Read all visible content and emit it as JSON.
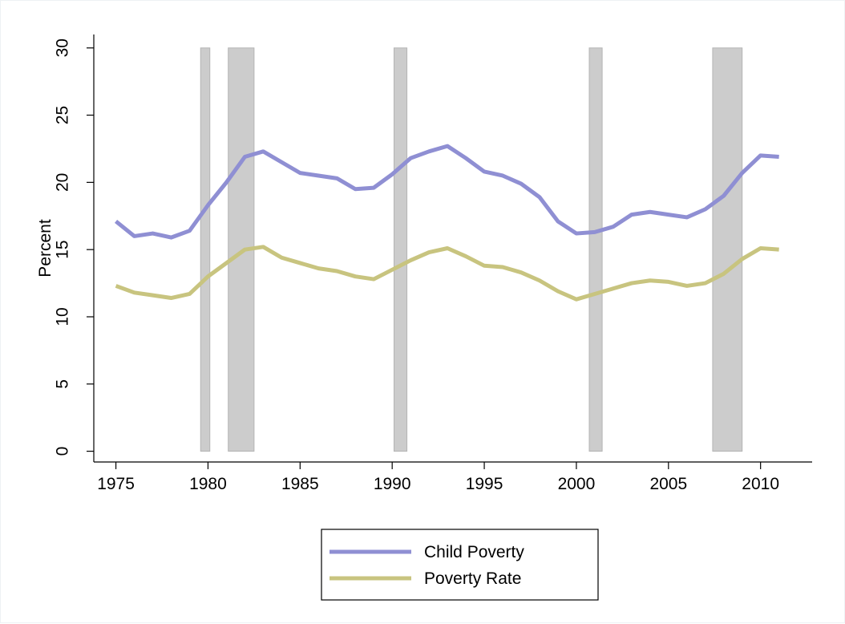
{
  "chart_data": {
    "type": "line",
    "title": "",
    "xlabel": "",
    "ylabel": "Percent",
    "xlim": [
      1973.8,
      2012.8
    ],
    "ylim": [
      -0.8,
      31
    ],
    "x_ticks": [
      1975,
      1980,
      1985,
      1990,
      1995,
      2000,
      2005,
      2010
    ],
    "y_ticks": [
      0,
      5,
      10,
      15,
      20,
      25,
      30
    ],
    "grid": false,
    "legend_position": "bottom-center",
    "recessions": [
      [
        1979.6,
        1980.1
      ],
      [
        1981.1,
        1982.5
      ],
      [
        1990.1,
        1990.8
      ],
      [
        2000.7,
        2001.4
      ],
      [
        2007.4,
        2009.0
      ]
    ],
    "recession_color": "#cccccc",
    "recession_edge": "#b4b4b4",
    "x": [
      1975,
      1976,
      1977,
      1978,
      1979,
      1980,
      1981,
      1982,
      1983,
      1984,
      1985,
      1986,
      1987,
      1988,
      1989,
      1990,
      1991,
      1992,
      1993,
      1994,
      1995,
      1996,
      1997,
      1998,
      1999,
      2000,
      2001,
      2002,
      2003,
      2004,
      2005,
      2006,
      2007,
      2008,
      2009,
      2010,
      2011
    ],
    "series": [
      {
        "name": "Child Poverty",
        "color": "#8f8fd3",
        "values": [
          17.1,
          16.0,
          16.2,
          15.9,
          16.4,
          18.3,
          20.0,
          21.9,
          22.3,
          21.5,
          20.7,
          20.5,
          20.3,
          19.5,
          19.6,
          20.6,
          21.8,
          22.3,
          22.7,
          21.8,
          20.8,
          20.5,
          19.9,
          18.9,
          17.1,
          16.2,
          16.3,
          16.7,
          17.6,
          17.8,
          17.6,
          17.4,
          18.0,
          19.0,
          20.7,
          22.0,
          21.9
        ]
      },
      {
        "name": "Poverty Rate",
        "color": "#c8c47f",
        "values": [
          12.3,
          11.8,
          11.6,
          11.4,
          11.7,
          13.0,
          14.0,
          15.0,
          15.2,
          14.4,
          14.0,
          13.6,
          13.4,
          13.0,
          12.8,
          13.5,
          14.2,
          14.8,
          15.1,
          14.5,
          13.8,
          13.7,
          13.3,
          12.7,
          11.9,
          11.3,
          11.7,
          12.1,
          12.5,
          12.7,
          12.6,
          12.3,
          12.5,
          13.2,
          14.3,
          15.1,
          15.0
        ]
      }
    ]
  }
}
